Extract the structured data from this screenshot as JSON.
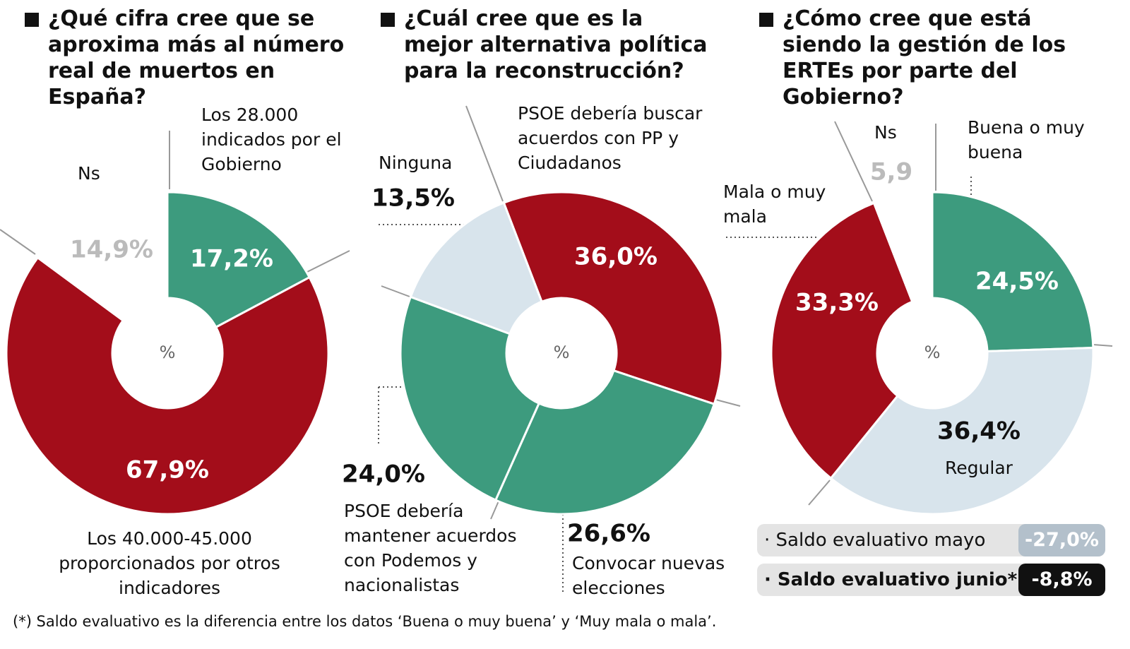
{
  "chart_data": [
    {
      "type": "donut",
      "title": "¿Qué cifra cree que se aproxima más al número real de muertos en España?",
      "center_label": "%",
      "categories": [
        "Los 28.000 indicados por el Gobierno",
        "Los 40.000-45.000 proporcionados por otros indicadores",
        "Ns"
      ],
      "values": [
        17.2,
        67.9,
        14.9
      ],
      "value_labels": [
        "17,2%",
        "67,9%",
        "14,9%"
      ],
      "colors": [
        "#3d9b7e",
        "#a30d1a",
        "#ffffff"
      ]
    },
    {
      "type": "donut",
      "title": "¿Cuál cree que es la mejor alternativa política para la reconstrucción?",
      "center_label": "%",
      "categories": [
        "PSOE debería buscar acuerdos con PP y Ciudadanos",
        "Convocar nuevas elecciones",
        "PSOE debería mantener acuerdos con Podemos y nacionalistas",
        "Ninguna"
      ],
      "values": [
        36.0,
        26.6,
        24.0,
        13.5
      ],
      "value_labels": [
        "36,0%",
        "26,6%",
        "24,0%",
        "13,5%"
      ],
      "colors": [
        "#a30d1a",
        "#3d9b7e",
        "#3d9b7e",
        "#d8e4ec"
      ]
    },
    {
      "type": "donut",
      "title": "¿Cómo cree que está siendo la gestión de los ERTEs por parte del Gobierno?",
      "center_label": "%",
      "categories": [
        "Buena o muy buena",
        "Regular",
        "Mala o muy mala",
        "Ns"
      ],
      "values": [
        24.5,
        36.4,
        33.3,
        5.9
      ],
      "value_labels": [
        "24,5%",
        "36,4%",
        "33,3%",
        "5,9"
      ],
      "colors": [
        "#3d9b7e",
        "#d8e4ec",
        "#a30d1a",
        "#ffffff"
      ]
    }
  ],
  "balances": [
    {
      "label": "· Saldo evaluativo mayo",
      "value": -27.0,
      "value_label": "-27,0%"
    },
    {
      "label": "· Saldo evaluativo junio*",
      "value": -8.8,
      "value_label": "-8,8%"
    }
  ],
  "footnote": "(*) Saldo evaluativo es la diferencia entre los datos ‘Buena o muy buena’ y ‘Muy mala o mala’."
}
